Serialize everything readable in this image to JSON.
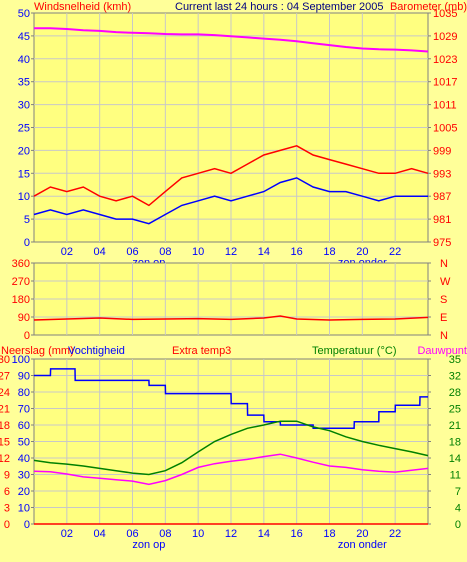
{
  "colors": {
    "background": "#ffff99",
    "plot_bg": "#ffff80",
    "grid": "#c8c8c8",
    "wind_gust": "#ff0000",
    "wind_avg": "#0000ff",
    "pressure": "#ff00ff",
    "direction": "#ff0000",
    "rain": "#ff0000",
    "humidity": "#0000ff",
    "extra_temp": "#ff0000",
    "temperature": "#008000",
    "dewpoint": "#ff00ff",
    "axis_text_left": "#0000ff",
    "axis_text_right": "#ff0000",
    "right_axis_green": "#008000"
  },
  "chart_data": [
    {
      "type": "line",
      "title": "Current last 24 hours : 04 September 2005",
      "left_label": "Windsnelheid (kmh)",
      "right_label": "Barometer (mb)",
      "x_ticks": [
        "02",
        "04",
        "06",
        "08",
        "10",
        "12",
        "14",
        "16",
        "18",
        "20",
        "22"
      ],
      "x_annotations": [
        "zon op",
        "zon onder"
      ],
      "y_left_ticks": [
        "0",
        "5",
        "10",
        "15",
        "20",
        "25",
        "30",
        "35",
        "40",
        "45",
        "50"
      ],
      "y_left_range": [
        0,
        50
      ],
      "y_right_ticks": [
        "975",
        "981",
        "987",
        "993",
        "999",
        "1005",
        "1011",
        "1017",
        "1023",
        "1029",
        "1035"
      ],
      "y_right_range": [
        975,
        1035
      ],
      "grid": true,
      "series": [
        {
          "name": "Windsnelheid",
          "key": "gust",
          "axis": "left",
          "x": [
            0,
            1,
            2,
            3,
            4,
            5,
            6,
            7,
            8,
            9,
            10,
            11,
            12,
            13,
            14,
            15,
            16,
            17,
            18,
            19,
            20,
            21,
            22,
            23,
            24
          ],
          "values": [
            10,
            12,
            11,
            12,
            10,
            9,
            10,
            8,
            11,
            14,
            15,
            16,
            15,
            17,
            19,
            20,
            21,
            19,
            18,
            17,
            16,
            15,
            15,
            16,
            15
          ]
        },
        {
          "name": "Windsnelheid",
          "key": "avg",
          "axis": "left",
          "x": [
            0,
            1,
            2,
            3,
            4,
            5,
            6,
            7,
            8,
            9,
            10,
            11,
            12,
            13,
            14,
            15,
            16,
            17,
            18,
            19,
            20,
            21,
            22,
            23,
            24
          ],
          "values": [
            6,
            7,
            6,
            7,
            6,
            5,
            5,
            4,
            6,
            8,
            9,
            10,
            9,
            10,
            11,
            13,
            14,
            12,
            11,
            11,
            10,
            9,
            10,
            10,
            10
          ]
        },
        {
          "name": "Barometer",
          "key": "pressure",
          "axis": "right",
          "x": [
            0,
            1,
            2,
            3,
            4,
            5,
            6,
            7,
            8,
            9,
            10,
            11,
            12,
            13,
            14,
            15,
            16,
            17,
            18,
            19,
            20,
            21,
            22,
            23,
            24
          ],
          "values": [
            1031.0,
            1031.0,
            1030.8,
            1030.5,
            1030.3,
            1030.0,
            1029.8,
            1029.7,
            1029.5,
            1029.4,
            1029.4,
            1029.2,
            1028.9,
            1028.6,
            1028.3,
            1028.0,
            1027.6,
            1027.1,
            1026.6,
            1026.1,
            1025.7,
            1025.5,
            1025.4,
            1025.2,
            1024.9
          ]
        }
      ]
    },
    {
      "type": "line",
      "y_left_ticks": [
        "0",
        "90",
        "180",
        "270",
        "360"
      ],
      "y_left_range": [
        0,
        360
      ],
      "y_right_ticks": [
        "N",
        "E",
        "S",
        "W",
        "N"
      ],
      "grid": true,
      "series": [
        {
          "name": "Windrichting",
          "key": "direction",
          "axis": "left",
          "x": [
            0,
            2,
            4,
            6,
            8,
            10,
            12,
            14,
            15,
            16,
            18,
            20,
            22,
            24
          ],
          "values": [
            75,
            80,
            85,
            78,
            80,
            82,
            78,
            85,
            95,
            80,
            75,
            78,
            80,
            88
          ]
        }
      ]
    },
    {
      "type": "line",
      "left_label_rain": "Neerslag (mm)",
      "left_label_humidity": "Vochtigheid",
      "extra_label": "Extra temp3",
      "right_label_temp": "Temperatuur (°C)",
      "right_label_dew": "Dauwpunt",
      "x_ticks": [
        "02",
        "04",
        "06",
        "08",
        "10",
        "12",
        "14",
        "16",
        "18",
        "20",
        "22"
      ],
      "x_annotations": [
        "zon op",
        "zon onder"
      ],
      "y_rain_ticks": [
        "0",
        "3",
        "6",
        "9",
        "12",
        "15",
        "18",
        "21",
        "24",
        "27",
        "30"
      ],
      "y_rain_range": [
        0,
        30
      ],
      "y_humidity_ticks": [
        "0",
        "10",
        "20",
        "30",
        "40",
        "50",
        "60",
        "70",
        "80",
        "90",
        "100"
      ],
      "y_humidity_range": [
        0,
        100
      ],
      "y_right_ticks": [
        "0",
        "4",
        "7",
        "11",
        "14",
        "18",
        "21",
        "25",
        "28",
        "32",
        "35"
      ],
      "y_right_range": [
        0,
        35
      ],
      "grid": true,
      "series": [
        {
          "name": "Neerslag",
          "key": "rain",
          "axis": "rain",
          "x": [
            0,
            24
          ],
          "values": [
            0,
            0
          ]
        },
        {
          "name": "Vochtigheid",
          "key": "humidity",
          "axis": "humidity",
          "x": [
            0,
            1,
            1.01,
            2.5,
            2.51,
            7,
            7.01,
            8,
            8.01,
            12,
            12.01,
            13,
            13.01,
            14,
            14.01,
            15,
            15.01,
            17,
            17.01,
            19.5,
            19.51,
            21,
            21.01,
            22,
            22.01,
            23.5,
            23.51,
            24
          ],
          "values": [
            90,
            90,
            94,
            94,
            87,
            87,
            84,
            84,
            79,
            79,
            73,
            73,
            66,
            66,
            62,
            62,
            60,
            60,
            58,
            58,
            62,
            62,
            68,
            68,
            72,
            72,
            77,
            77
          ]
        },
        {
          "name": "Temperatuur",
          "key": "temperature",
          "axis": "right",
          "x": [
            0,
            1,
            2,
            3,
            4,
            5,
            6,
            7,
            8,
            9,
            10,
            11,
            12,
            13,
            14,
            15,
            16,
            17,
            18,
            19,
            20,
            21,
            22,
            23,
            24
          ],
          "values": [
            13.5,
            13.0,
            12.7,
            12.3,
            11.8,
            11.3,
            10.8,
            10.5,
            11.3,
            13.0,
            15.3,
            17.5,
            19.0,
            20.3,
            21.0,
            21.8,
            21.8,
            20.6,
            19.8,
            18.5,
            17.5,
            16.7,
            16.0,
            15.3,
            14.5
          ]
        },
        {
          "name": "Dauwpunt",
          "key": "dewpoint",
          "axis": "right",
          "x": [
            0,
            1,
            2,
            3,
            4,
            5,
            6,
            7,
            8,
            9,
            10,
            11,
            12,
            13,
            14,
            15,
            16,
            17,
            18,
            19,
            20,
            21,
            22,
            23,
            24
          ],
          "values": [
            11.2,
            11.1,
            10.6,
            10.0,
            9.7,
            9.4,
            9.1,
            8.4,
            9.2,
            10.5,
            12.0,
            12.8,
            13.3,
            13.7,
            14.3,
            14.8,
            14.0,
            13.1,
            12.3,
            12.0,
            11.5,
            11.2,
            11.0,
            11.4,
            11.8
          ]
        }
      ]
    }
  ]
}
